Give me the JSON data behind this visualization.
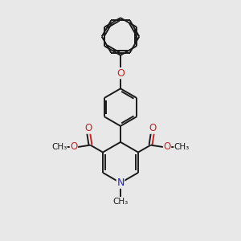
{
  "background_color": "#e8e8e8",
  "bond_color": "#1a1a1a",
  "nitrogen_color": "#2222cc",
  "oxygen_color": "#cc2222",
  "line_width": 1.4,
  "dbo": 0.055,
  "figsize": [
    3.0,
    3.0
  ],
  "dpi": 100,
  "xlim": [
    0,
    10
  ],
  "ylim": [
    0,
    10
  ]
}
